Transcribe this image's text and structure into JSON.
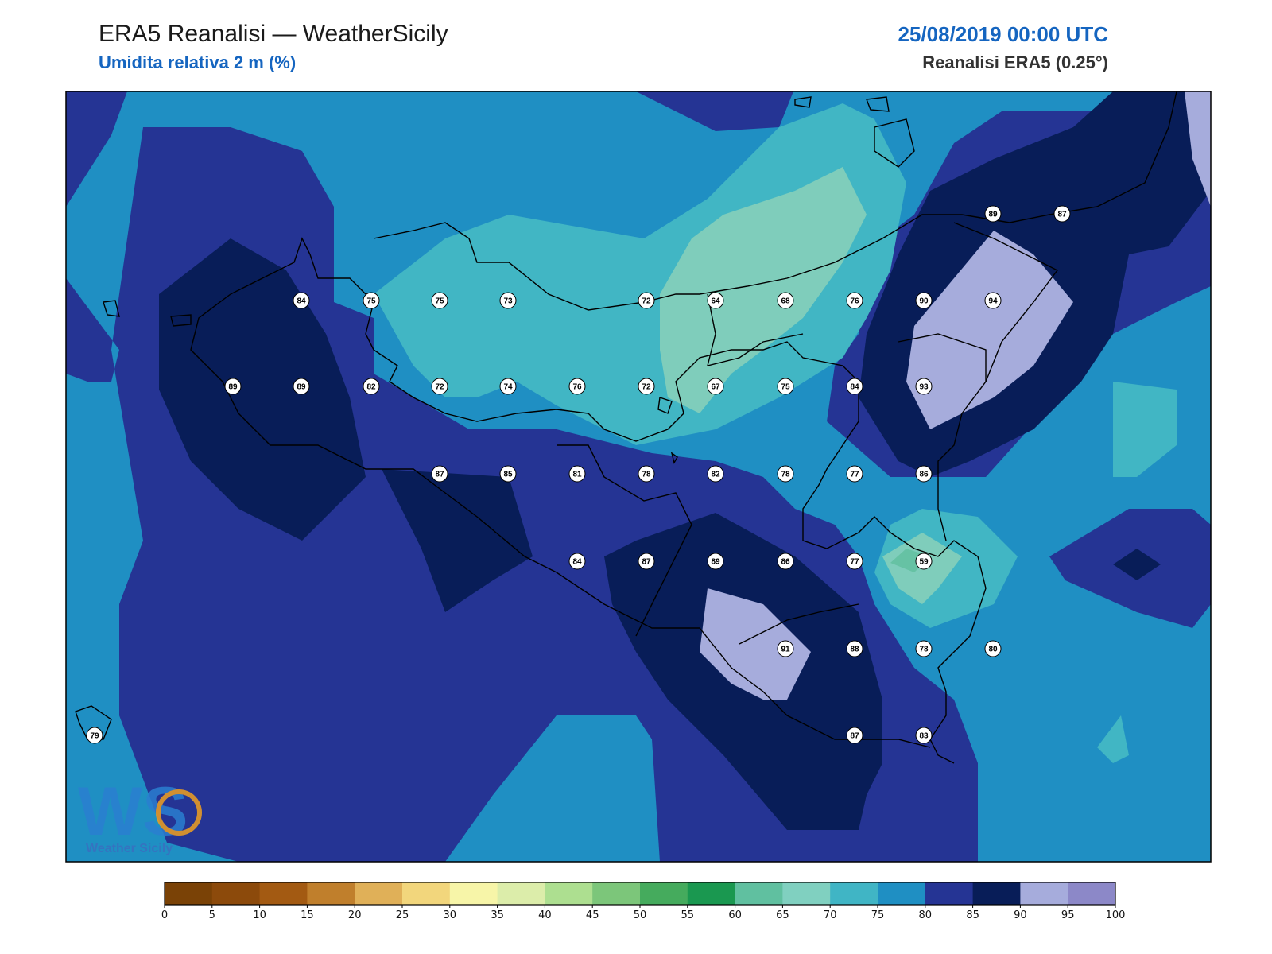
{
  "header": {
    "title": "ERA5 Reanalisi — WeatherSicily",
    "subtitle": "Umidita relativa 2 m (%)",
    "datetime": "25/08/2019 00:00 UTC",
    "source": "Reanalisi ERA5 (0.25°)"
  },
  "logo": {
    "text": "WS",
    "caption": "Weather Sicily"
  },
  "colors": {
    "band_75_80": "#1f8fc3",
    "band_80_85": "#253494",
    "band_85_90": "#081d58",
    "band_70_75": "#41b6c4",
    "band_65_70": "#7fcdbb",
    "band_60_65": "#66c2a4",
    "band_90_95": "#a6acdc",
    "coastline": "#000000",
    "station_fill": "#ffffff"
  },
  "stations": [
    "84",
    "75",
    "75",
    "73",
    "72",
    "64",
    "68",
    "76",
    "90",
    "94",
    "89",
    "87",
    "89",
    "89",
    "82",
    "72",
    "74",
    "76",
    "72",
    "67",
    "75",
    "84",
    "93",
    "87",
    "85",
    "81",
    "78",
    "82",
    "78",
    "77",
    "86",
    "84",
    "87",
    "89",
    "86",
    "77",
    "59",
    "91",
    "88",
    "78",
    "80",
    "87",
    "83",
    "79"
  ],
  "colorbar": {
    "ticks": [
      "0",
      "5",
      "10",
      "15",
      "20",
      "25",
      "30",
      "35",
      "40",
      "45",
      "50",
      "55",
      "60",
      "65",
      "70",
      "75",
      "80",
      "85",
      "90",
      "95",
      "100"
    ],
    "colors": [
      "#7a4206",
      "#8c4a0b",
      "#a35a12",
      "#c07f2c",
      "#e0b058",
      "#f2d67c",
      "#f7f5a8",
      "#dcedaa",
      "#addf90",
      "#7cc67a",
      "#45ab5d",
      "#1a9850",
      "#60c0a0",
      "#80d0c0",
      "#40b5c5",
      "#1f8fc3",
      "#253494",
      "#081d58",
      "#a6acdc",
      "#8c88c8"
    ]
  }
}
